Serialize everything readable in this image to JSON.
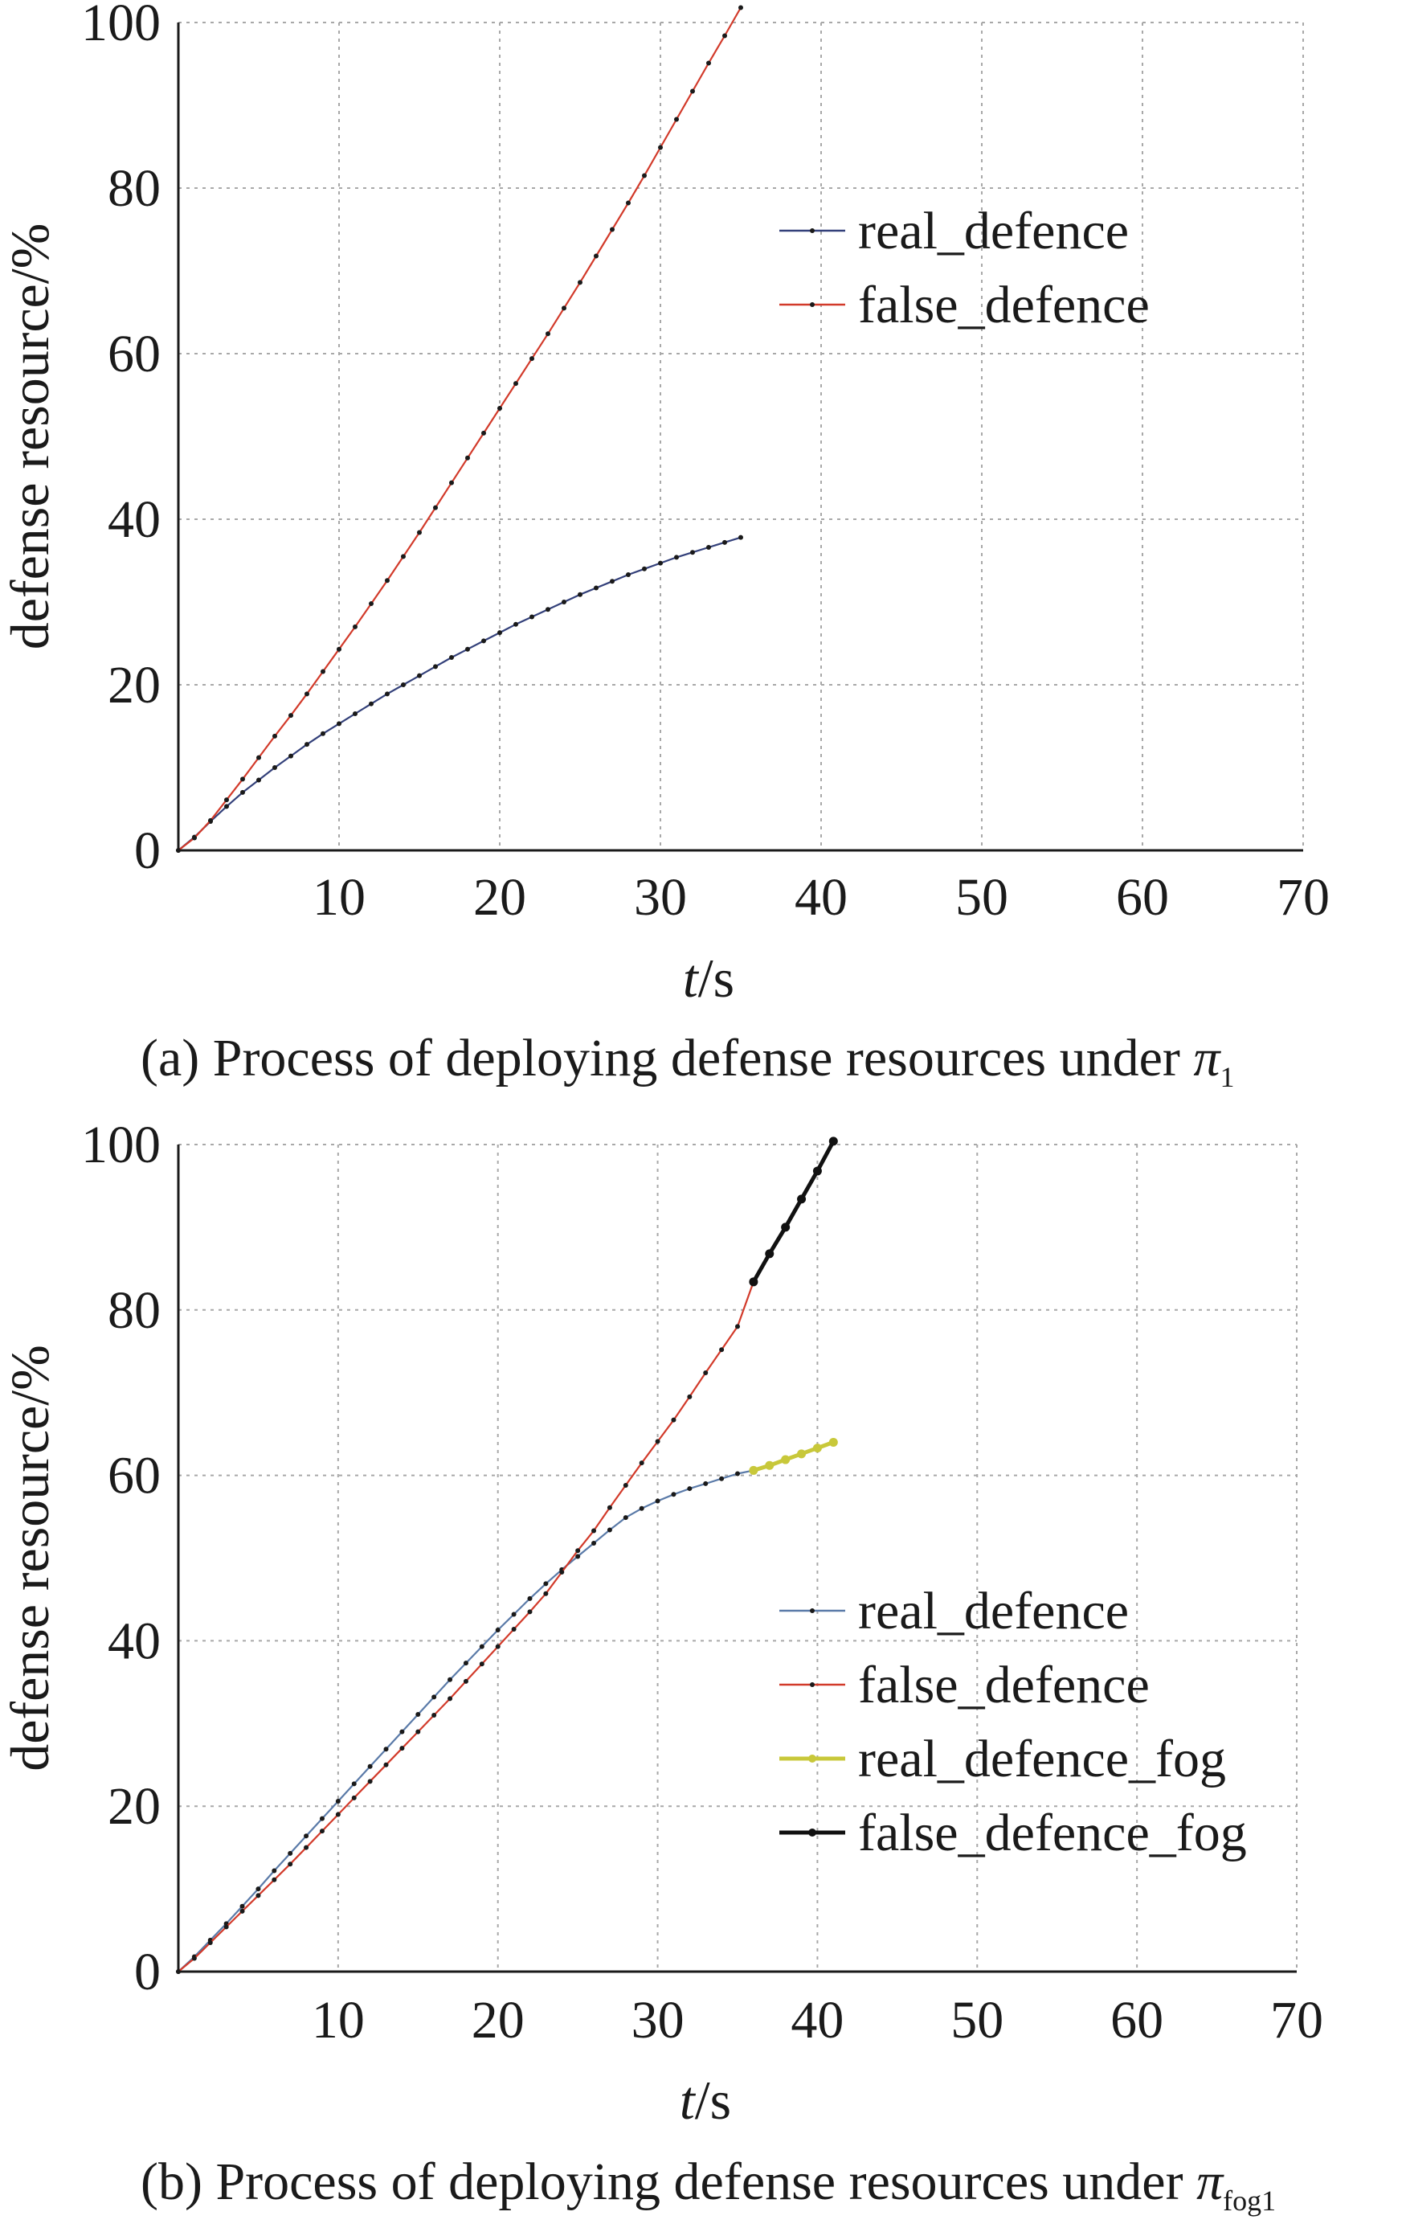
{
  "chart_data": [
    {
      "type": "line",
      "caption": {
        "prefix": "(a) Process of deploying defense resources under ",
        "symbol": "π",
        "subscript": "1"
      },
      "xlabel": {
        "italic": "t",
        "rest": "/s"
      },
      "ylabel": "defense resource/%",
      "xlim": [
        0,
        70
      ],
      "ylim": [
        0,
        100
      ],
      "xticks": [
        "10",
        "20",
        "30",
        "40",
        "50",
        "60",
        "70"
      ],
      "yticks": [
        "0",
        "20",
        "40",
        "60",
        "80",
        "100"
      ],
      "grid": true,
      "legend_position": "upper-right",
      "series": [
        {
          "name": "real_defence",
          "color": "#33407a",
          "x": [
            0,
            1,
            2,
            3,
            4,
            5,
            6,
            7,
            8,
            9,
            10,
            11,
            12,
            13,
            14,
            15,
            16,
            17,
            18,
            19,
            20,
            21,
            22,
            23,
            24,
            25,
            26,
            27,
            28,
            29,
            30,
            31,
            32,
            33,
            34,
            35
          ],
          "y": [
            0,
            1.6,
            3.5,
            5.3,
            7.0,
            8.5,
            10.0,
            11.4,
            12.8,
            14.1,
            15.3,
            16.5,
            17.7,
            18.9,
            20.0,
            21.1,
            22.2,
            23.3,
            24.3,
            25.3,
            26.3,
            27.3,
            28.2,
            29.1,
            30.0,
            30.9,
            31.7,
            32.5,
            33.3,
            34.0,
            34.7,
            35.4,
            36.0,
            36.6,
            37.2,
            37.8
          ]
        },
        {
          "name": "false_defence",
          "color": "#d23a2a",
          "x": [
            0,
            1,
            2,
            3,
            4,
            5,
            6,
            7,
            8,
            9,
            10,
            11,
            12,
            13,
            14,
            15,
            16,
            17,
            18,
            19,
            20,
            21,
            22,
            23,
            24,
            25,
            26,
            27,
            28,
            29,
            30,
            31,
            32,
            33,
            34,
            35
          ],
          "y": [
            0,
            1.5,
            3.6,
            6.1,
            8.6,
            11.2,
            13.8,
            16.3,
            18.9,
            21.6,
            24.3,
            27.0,
            29.8,
            32.6,
            35.5,
            38.4,
            41.4,
            44.4,
            47.4,
            50.4,
            53.4,
            56.4,
            59.4,
            62.4,
            65.5,
            68.6,
            71.8,
            75.0,
            78.2,
            81.5,
            84.9,
            88.3,
            91.7,
            95.1,
            98.4,
            101.8
          ]
        }
      ]
    },
    {
      "type": "line",
      "caption": {
        "prefix": "(b) Process of deploying defense resources under ",
        "symbol": "π",
        "subscript": "fog1"
      },
      "xlabel": {
        "italic": "t",
        "rest": "/s"
      },
      "ylabel": "defense resource/%",
      "xlim": [
        0,
        70
      ],
      "ylim": [
        0,
        100
      ],
      "xticks": [
        "10",
        "20",
        "30",
        "40",
        "50",
        "60",
        "70"
      ],
      "yticks": [
        "0",
        "20",
        "40",
        "60",
        "80",
        "100"
      ],
      "grid": true,
      "legend_position": "lower-right",
      "series": [
        {
          "name": "real_defence",
          "color": "#5a7aa8",
          "x": [
            0,
            1,
            2,
            3,
            4,
            5,
            6,
            7,
            8,
            9,
            10,
            11,
            12,
            13,
            14,
            15,
            16,
            17,
            18,
            19,
            20,
            21,
            22,
            23,
            24,
            25,
            26,
            27,
            28,
            29,
            30,
            31,
            32,
            33,
            34,
            35,
            36
          ],
          "y": [
            0,
            1.8,
            3.8,
            5.8,
            7.9,
            10.0,
            12.2,
            14.3,
            16.4,
            18.5,
            20.6,
            22.7,
            24.8,
            26.9,
            29.0,
            31.1,
            33.2,
            35.3,
            37.3,
            39.3,
            41.3,
            43.2,
            45.1,
            46.9,
            48.6,
            50.2,
            51.8,
            53.4,
            54.9,
            56.0,
            56.9,
            57.7,
            58.4,
            59.0,
            59.6,
            60.2,
            60.6
          ]
        },
        {
          "name": "false_defence",
          "color": "#d23a2a",
          "x": [
            0,
            1,
            2,
            3,
            4,
            5,
            6,
            7,
            8,
            9,
            10,
            11,
            12,
            13,
            14,
            15,
            16,
            17,
            18,
            19,
            20,
            21,
            22,
            23,
            24,
            25,
            26,
            27,
            28,
            29,
            30,
            31,
            32,
            33,
            34,
            35,
            36
          ],
          "y": [
            0,
            1.6,
            3.5,
            5.4,
            7.3,
            9.2,
            11.1,
            13.0,
            15.0,
            17.0,
            19.0,
            21.0,
            23.0,
            25.0,
            27.0,
            29.0,
            31.0,
            33.0,
            35.1,
            37.2,
            39.3,
            41.4,
            43.5,
            45.7,
            48.3,
            50.9,
            53.3,
            56.1,
            58.8,
            61.5,
            64.1,
            66.7,
            69.5,
            72.4,
            75.2,
            78.0,
            83.4
          ]
        },
        {
          "name": "real_defence_fog",
          "color": "#c8c83a",
          "x": [
            36,
            37,
            38,
            39,
            40,
            41
          ],
          "y": [
            60.6,
            61.2,
            61.9,
            62.6,
            63.3,
            64.0
          ]
        },
        {
          "name": "false_defence_fog",
          "color": "#111111",
          "x": [
            36,
            37,
            38,
            39,
            40,
            41
          ],
          "y": [
            83.4,
            86.8,
            90.0,
            93.4,
            96.8,
            100.4
          ]
        }
      ]
    }
  ]
}
